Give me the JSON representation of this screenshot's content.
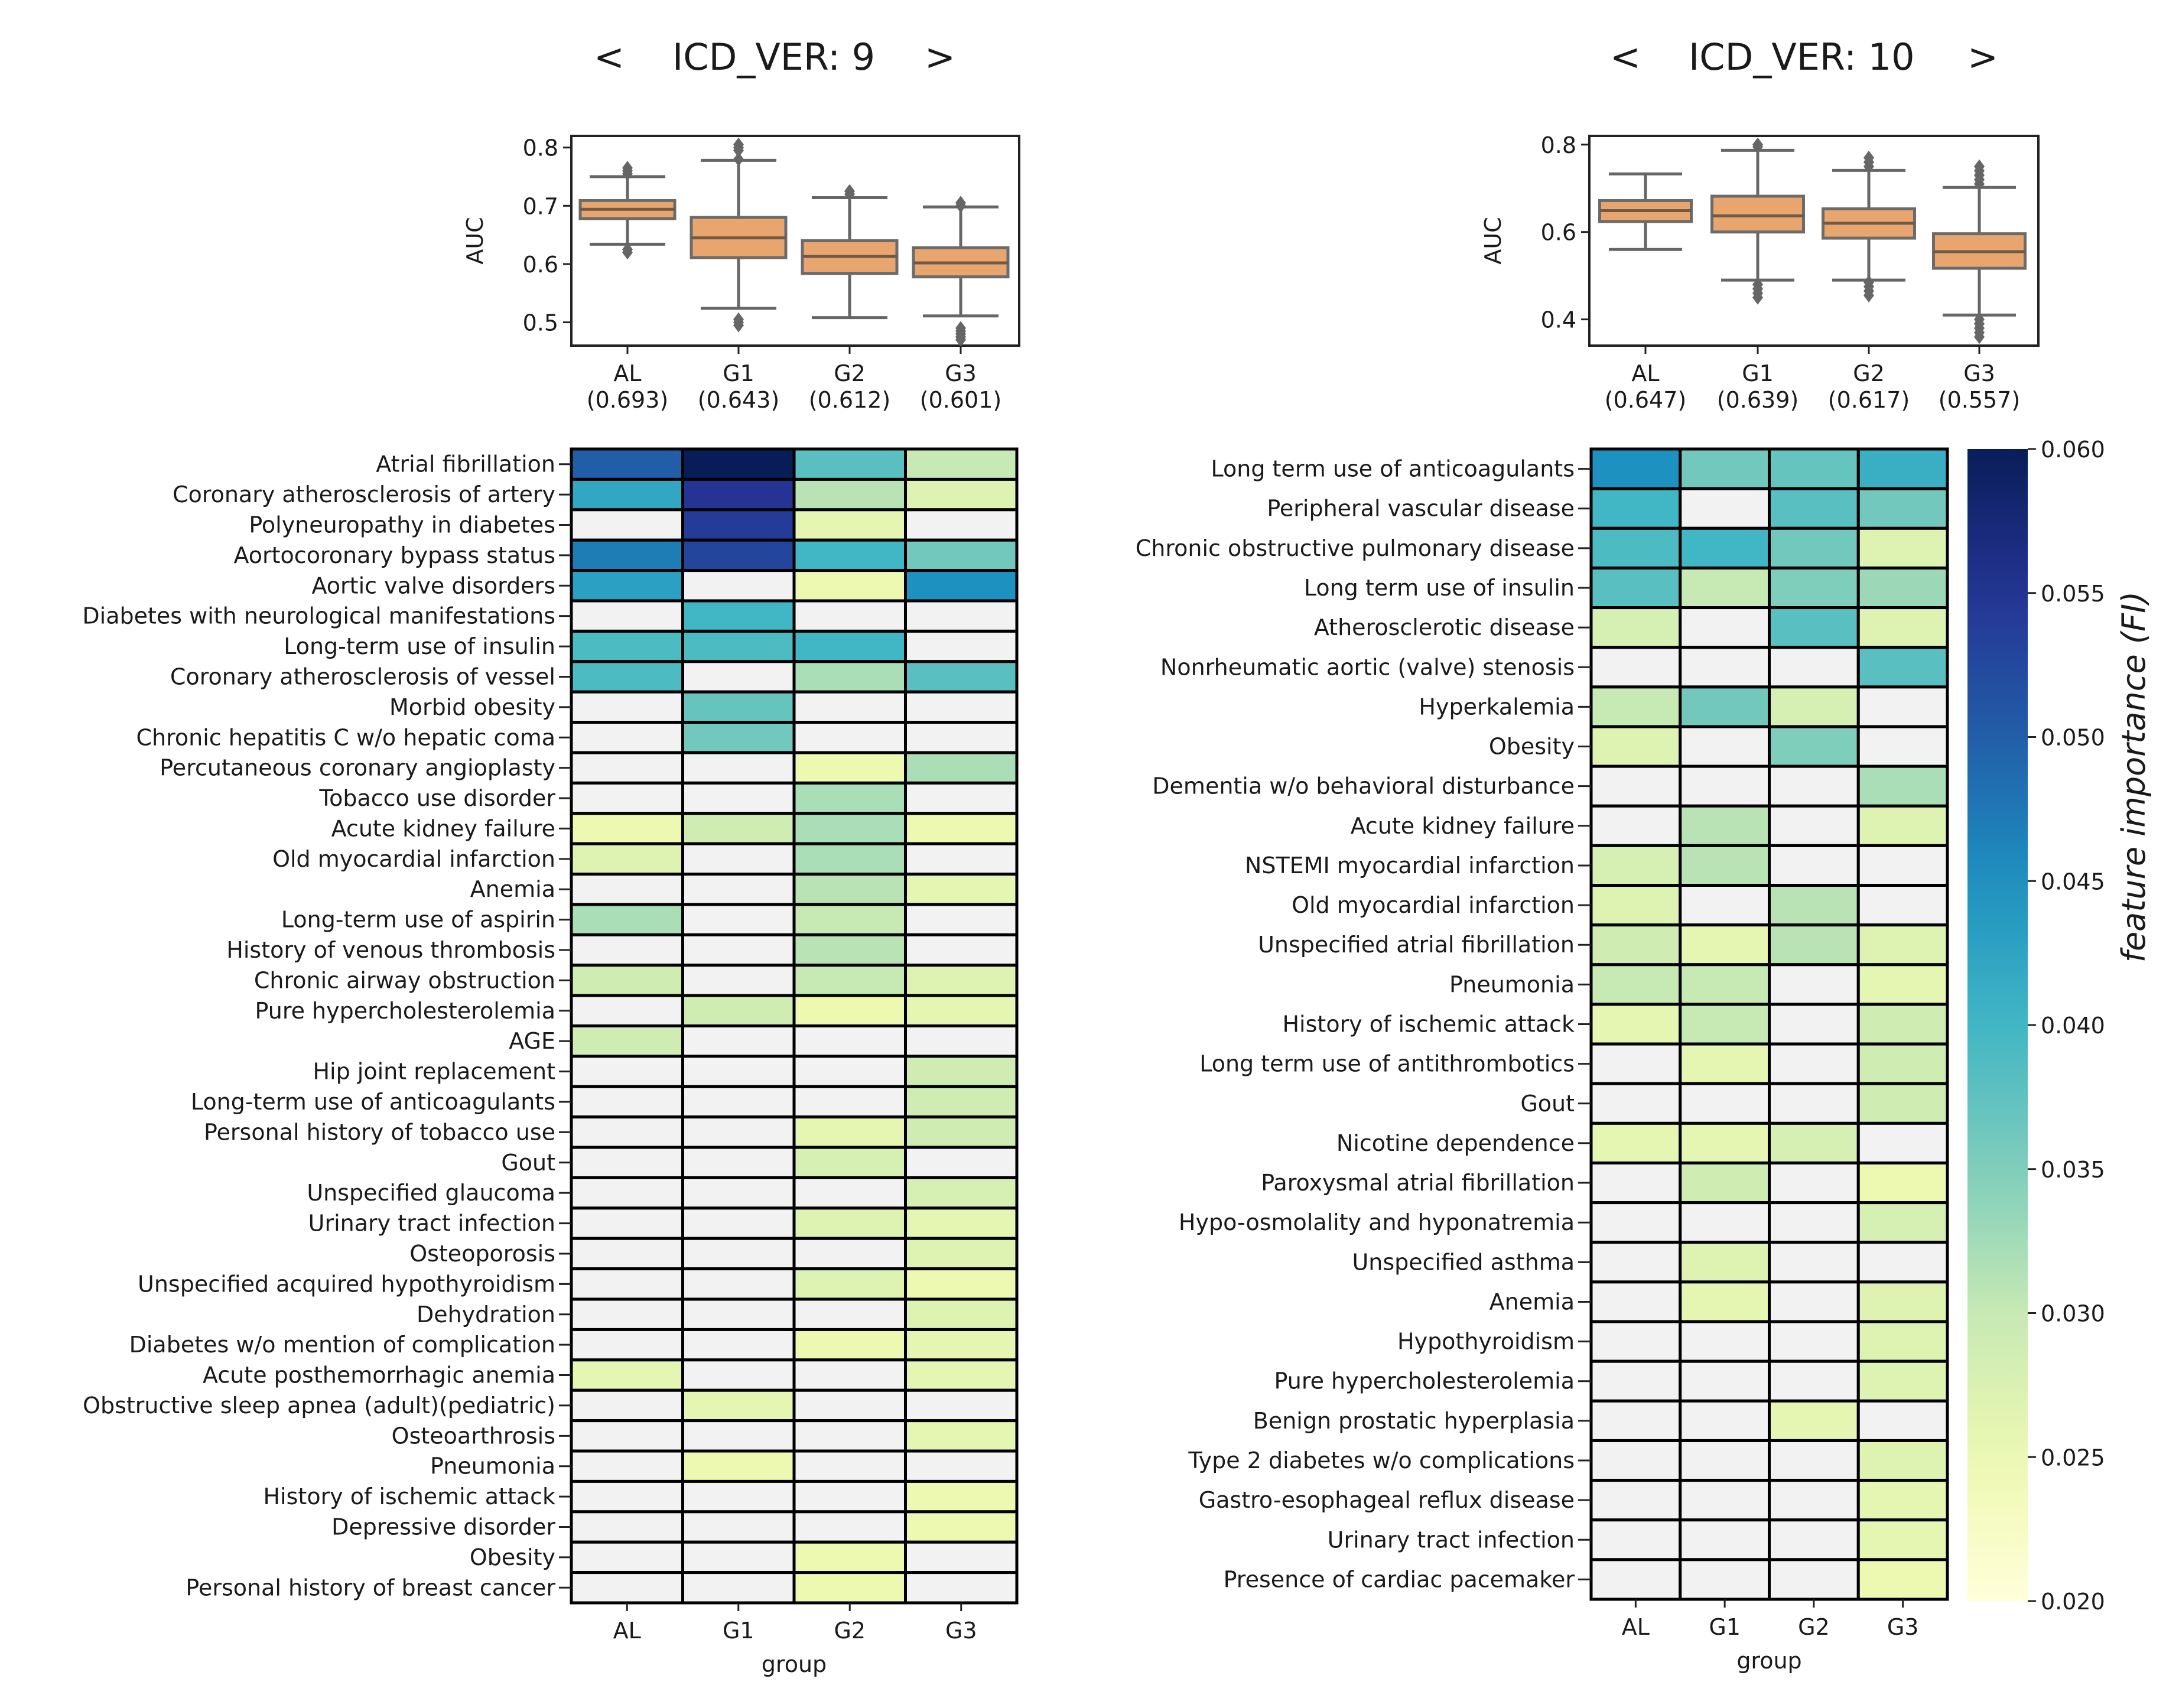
{
  "panels": [
    {
      "nav": {
        "prev_label": "<",
        "title": "ICD_VER: 9",
        "next_label": ">"
      }
    },
    {
      "nav": {
        "prev_label": "<",
        "title": "ICD_VER: 10",
        "next_label": ">"
      }
    }
  ],
  "chart_data": [
    {
      "type": "box",
      "title": "ICD_VER: 9",
      "ylabel": "AUC",
      "xlabel": "",
      "ylim": [
        0.46,
        0.82
      ],
      "yticks": [
        0.5,
        0.6,
        0.7,
        0.8
      ],
      "categories": [
        "AL",
        "G1",
        "G2",
        "G3"
      ],
      "category_means": [
        "(0.693)",
        "(0.643)",
        "(0.612)",
        "(0.601)"
      ],
      "box_color": "#e8a66e",
      "boxes": [
        {
          "q1": 0.678,
          "median": 0.694,
          "q3": 0.709,
          "whisker_low": 0.634,
          "whisker_high": 0.75,
          "outliers": [
            0.62,
            0.625,
            0.755,
            0.76,
            0.765
          ]
        },
        {
          "q1": 0.611,
          "median": 0.645,
          "q3": 0.68,
          "whisker_low": 0.524,
          "whisker_high": 0.778,
          "outliers": [
            0.495,
            0.5,
            0.505,
            0.78,
            0.795,
            0.8,
            0.805
          ]
        },
        {
          "q1": 0.584,
          "median": 0.613,
          "q3": 0.64,
          "whisker_low": 0.508,
          "whisker_high": 0.714,
          "outliers": [
            0.72,
            0.725
          ]
        },
        {
          "q1": 0.578,
          "median": 0.602,
          "q3": 0.628,
          "whisker_low": 0.511,
          "whisker_high": 0.698,
          "outliers": [
            0.47,
            0.475,
            0.48,
            0.485,
            0.49,
            0.7,
            0.705
          ]
        }
      ]
    },
    {
      "type": "box",
      "title": "ICD_VER: 10",
      "ylabel": "AUC",
      "xlabel": "",
      "ylim": [
        0.34,
        0.82
      ],
      "yticks": [
        0.4,
        0.6,
        0.8
      ],
      "categories": [
        "AL",
        "G1",
        "G2",
        "G3"
      ],
      "category_means": [
        "(0.647)",
        "(0.639)",
        "(0.617)",
        "(0.557)"
      ],
      "box_color": "#e8a66e",
      "boxes": [
        {
          "q1": 0.624,
          "median": 0.649,
          "q3": 0.672,
          "whisker_low": 0.56,
          "whisker_high": 0.733,
          "outliers": []
        },
        {
          "q1": 0.6,
          "median": 0.637,
          "q3": 0.682,
          "whisker_low": 0.49,
          "whisker_high": 0.787,
          "outliers": [
            0.45,
            0.46,
            0.47,
            0.48,
            0.795,
            0.8
          ]
        },
        {
          "q1": 0.586,
          "median": 0.62,
          "q3": 0.653,
          "whisker_low": 0.49,
          "whisker_high": 0.741,
          "outliers": [
            0.455,
            0.465,
            0.475,
            0.485,
            0.75,
            0.76,
            0.77
          ]
        },
        {
          "q1": 0.517,
          "median": 0.555,
          "q3": 0.596,
          "whisker_low": 0.41,
          "whisker_high": 0.702,
          "outliers": [
            0.36,
            0.37,
            0.38,
            0.39,
            0.4,
            0.71,
            0.72,
            0.73,
            0.74,
            0.75
          ]
        }
      ]
    },
    {
      "type": "heatmap",
      "title": "ICD_VER: 9 feature importance",
      "xlabel": "group",
      "ylabel": "",
      "columns": [
        "AL",
        "G1",
        "G2",
        "G3"
      ],
      "colormap": "YlGnBu",
      "vmin": 0.02,
      "vmax": 0.06,
      "missing_color": "#f2f2f2",
      "rows": [
        {
          "label": "Atrial fibrillation",
          "values": [
            0.05,
            0.06,
            0.038,
            0.03
          ]
        },
        {
          "label": "Coronary atherosclerosis of artery",
          "values": [
            0.042,
            0.055,
            0.031,
            0.027
          ]
        },
        {
          "label": "Polyneuropathy in diabetes",
          "values": [
            null,
            0.054,
            0.026,
            null
          ]
        },
        {
          "label": "Aortocoronary bypass status",
          "values": [
            0.047,
            0.053,
            0.04,
            0.036
          ]
        },
        {
          "label": "Aortic valve disorders",
          "values": [
            0.043,
            null,
            0.025,
            0.045
          ]
        },
        {
          "label": "Diabetes with neurological manifestations",
          "values": [
            null,
            0.04,
            null,
            null
          ]
        },
        {
          "label": "Long-term use of insulin",
          "values": [
            0.039,
            0.039,
            0.04,
            null
          ]
        },
        {
          "label": "Coronary atherosclerosis of vessel",
          "values": [
            0.039,
            null,
            0.032,
            0.038
          ]
        },
        {
          "label": "Morbid obesity",
          "values": [
            null,
            0.037,
            null,
            null
          ]
        },
        {
          "label": "Chronic hepatitis C w/o hepatic coma",
          "values": [
            null,
            0.036,
            null,
            null
          ]
        },
        {
          "label": "Percutaneous coronary angioplasty",
          "values": [
            null,
            null,
            0.025,
            0.032
          ]
        },
        {
          "label": "Tobacco use disorder",
          "values": [
            null,
            null,
            0.032,
            null
          ]
        },
        {
          "label": "Acute kidney failure",
          "values": [
            0.025,
            0.029,
            0.032,
            0.025
          ]
        },
        {
          "label": "Old myocardial infarction",
          "values": [
            0.027,
            null,
            0.032,
            null
          ]
        },
        {
          "label": "Anemia",
          "values": [
            null,
            null,
            0.031,
            0.026
          ]
        },
        {
          "label": "Long-term use of aspirin",
          "values": [
            0.032,
            null,
            0.03,
            null
          ]
        },
        {
          "label": "History of venous thrombosis",
          "values": [
            null,
            null,
            0.031,
            null
          ]
        },
        {
          "label": "Chronic airway obstruction",
          "values": [
            0.029,
            null,
            0.03,
            0.027
          ]
        },
        {
          "label": "Pure hypercholesterolemia",
          "values": [
            null,
            0.029,
            0.025,
            0.026
          ]
        },
        {
          "label": "AGE",
          "values": [
            0.029,
            null,
            null,
            null
          ]
        },
        {
          "label": "Hip joint replacement",
          "values": [
            null,
            null,
            null,
            0.029
          ]
        },
        {
          "label": "Long-term use of anticoagulants",
          "values": [
            null,
            null,
            null,
            0.029
          ]
        },
        {
          "label": "Personal history of tobacco use",
          "values": [
            null,
            null,
            0.026,
            0.029
          ]
        },
        {
          "label": "Gout",
          "values": [
            null,
            null,
            0.028,
            null
          ]
        },
        {
          "label": "Unspecified glaucoma",
          "values": [
            null,
            null,
            null,
            0.028
          ]
        },
        {
          "label": "Urinary tract infection",
          "values": [
            null,
            null,
            0.027,
            0.026
          ]
        },
        {
          "label": "Osteoporosis",
          "values": [
            null,
            null,
            null,
            0.027
          ]
        },
        {
          "label": "Unspecified acquired hypothyroidism",
          "values": [
            null,
            null,
            0.027,
            0.025
          ]
        },
        {
          "label": "Dehydration",
          "values": [
            null,
            null,
            null,
            0.027
          ]
        },
        {
          "label": "Diabetes w/o mention of complication",
          "values": [
            null,
            null,
            0.025,
            0.026
          ]
        },
        {
          "label": "Acute posthemorrhagic anemia",
          "values": [
            0.026,
            null,
            null,
            0.026
          ]
        },
        {
          "label": "Obstructive sleep apnea (adult)(pediatric)",
          "values": [
            null,
            0.026,
            null,
            null
          ]
        },
        {
          "label": "Osteoarthrosis",
          "values": [
            null,
            null,
            null,
            0.026
          ]
        },
        {
          "label": "Pneumonia",
          "values": [
            null,
            0.025,
            null,
            null
          ]
        },
        {
          "label": "History of ischemic attack",
          "values": [
            null,
            null,
            null,
            0.025
          ]
        },
        {
          "label": "Depressive disorder",
          "values": [
            null,
            null,
            null,
            0.025
          ]
        },
        {
          "label": "Obesity",
          "values": [
            null,
            null,
            0.025,
            null
          ]
        },
        {
          "label": "Personal history of breast cancer",
          "values": [
            null,
            null,
            0.025,
            null
          ]
        }
      ]
    },
    {
      "type": "heatmap",
      "title": "ICD_VER: 10 feature importance",
      "xlabel": "group",
      "ylabel": "",
      "columns": [
        "AL",
        "G1",
        "G2",
        "G3"
      ],
      "colormap": "YlGnBu",
      "vmin": 0.02,
      "vmax": 0.06,
      "missing_color": "#f2f2f2",
      "rows": [
        {
          "label": "Long term use of anticoagulants",
          "values": [
            0.045,
            0.036,
            0.037,
            0.041
          ]
        },
        {
          "label": "Peripheral vascular disease",
          "values": [
            0.04,
            null,
            0.038,
            0.036
          ]
        },
        {
          "label": "Chronic obstructive pulmonary disease",
          "values": [
            0.039,
            0.04,
            0.036,
            0.027
          ]
        },
        {
          "label": "Long term use of insulin",
          "values": [
            0.038,
            0.03,
            0.035,
            0.033
          ]
        },
        {
          "label": "Atherosclerotic disease",
          "values": [
            0.028,
            null,
            0.038,
            0.027
          ]
        },
        {
          "label": "Nonrheumatic aortic (valve) stenosis",
          "values": [
            null,
            null,
            null,
            0.038
          ]
        },
        {
          "label": "Hyperkalemia",
          "values": [
            0.03,
            0.036,
            0.028,
            null
          ]
        },
        {
          "label": "Obesity",
          "values": [
            0.027,
            null,
            0.035,
            null
          ]
        },
        {
          "label": "Dementia w/o behavioral disturbance",
          "values": [
            null,
            null,
            null,
            0.032
          ]
        },
        {
          "label": "Acute kidney failure",
          "values": [
            null,
            0.031,
            null,
            0.027
          ]
        },
        {
          "label": "NSTEMI myocardial infarction",
          "values": [
            0.028,
            0.031,
            null,
            null
          ]
        },
        {
          "label": "Old myocardial infarction",
          "values": [
            0.027,
            null,
            0.031,
            null
          ]
        },
        {
          "label": "Unspecified atrial fibrillation",
          "values": [
            0.029,
            0.026,
            0.031,
            0.027
          ]
        },
        {
          "label": "Pneumonia",
          "values": [
            0.03,
            0.03,
            null,
            0.026
          ]
        },
        {
          "label": "History of ischemic attack",
          "values": [
            0.026,
            0.03,
            null,
            0.029
          ]
        },
        {
          "label": "Long term use of antithrombotics",
          "values": [
            null,
            0.026,
            null,
            0.029
          ]
        },
        {
          "label": "Gout",
          "values": [
            null,
            null,
            null,
            0.029
          ]
        },
        {
          "label": "Nicotine dependence",
          "values": [
            0.026,
            0.026,
            0.028,
            null
          ]
        },
        {
          "label": "Paroxysmal atrial fibrillation",
          "values": [
            null,
            0.029,
            null,
            0.025
          ]
        },
        {
          "label": "Hypo-osmolality and hyponatremia",
          "values": [
            null,
            null,
            null,
            0.028
          ]
        },
        {
          "label": "Unspecified asthma",
          "values": [
            null,
            0.027,
            null,
            null
          ]
        },
        {
          "label": "Anemia",
          "values": [
            null,
            0.026,
            null,
            0.027
          ]
        },
        {
          "label": "Hypothyroidism",
          "values": [
            null,
            null,
            null,
            0.027
          ]
        },
        {
          "label": "Pure hypercholesterolemia",
          "values": [
            null,
            null,
            null,
            0.027
          ]
        },
        {
          "label": "Benign prostatic hyperplasia",
          "values": [
            null,
            null,
            0.026,
            null
          ]
        },
        {
          "label": "Type 2 diabetes w/o complications",
          "values": [
            null,
            null,
            null,
            0.027
          ]
        },
        {
          "label": "Gastro-esophageal reflux disease",
          "values": [
            null,
            null,
            null,
            0.026
          ]
        },
        {
          "label": "Urinary tract infection",
          "values": [
            null,
            null,
            null,
            0.026
          ]
        },
        {
          "label": "Presence of cardiac pacemaker",
          "values": [
            null,
            null,
            null,
            0.025
          ]
        }
      ]
    },
    {
      "type": "colorbar",
      "label": "feature importance (FI)",
      "colormap": "YlGnBu",
      "vmin": 0.02,
      "vmax": 0.06,
      "ticks": [
        "0.020",
        "0.025",
        "0.030",
        "0.035",
        "0.040",
        "0.045",
        "0.050",
        "0.055",
        "0.060"
      ]
    }
  ]
}
